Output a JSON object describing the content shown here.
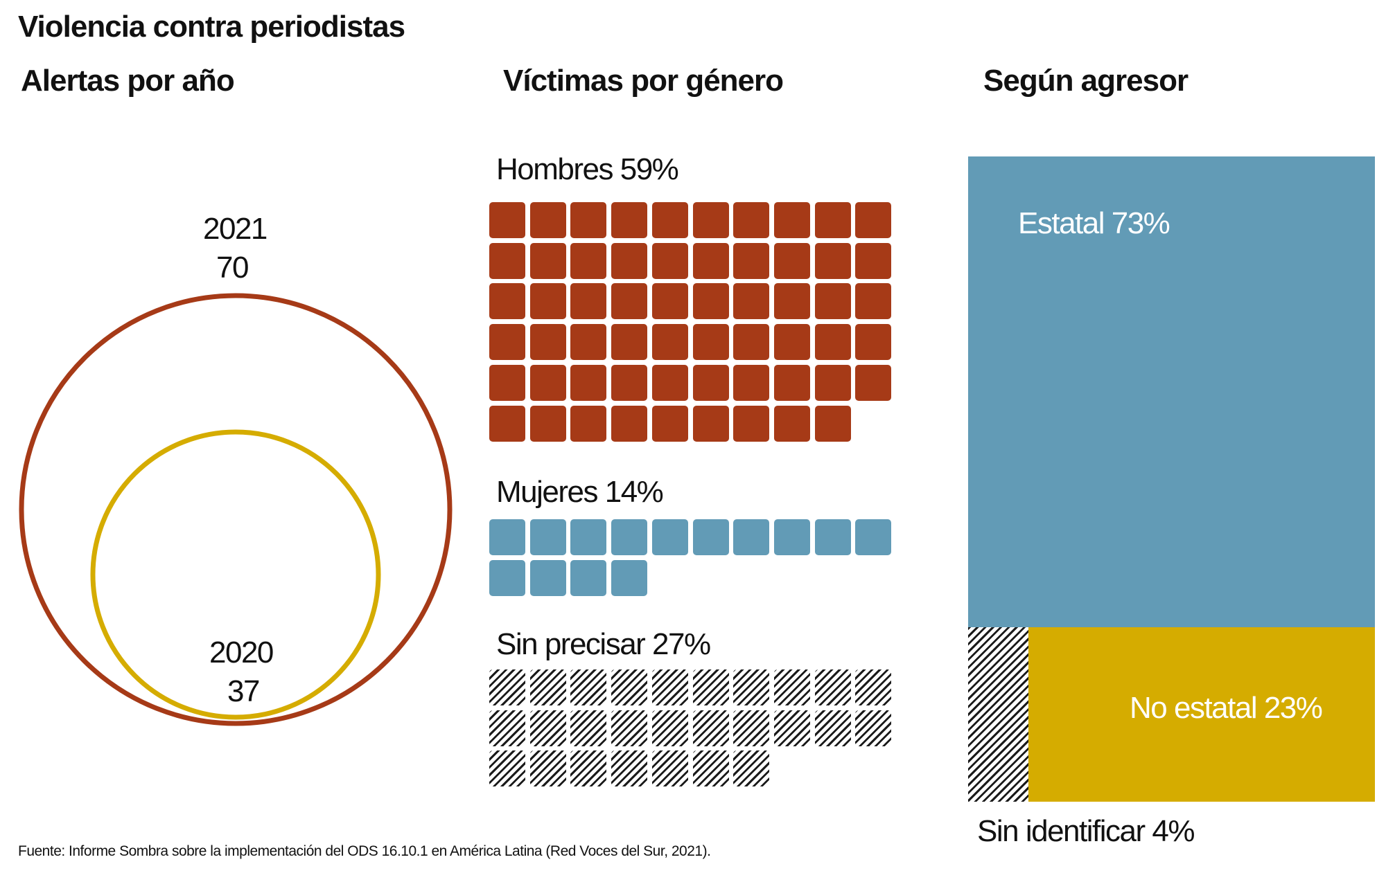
{
  "title": "Violencia contra periodistas",
  "source": "Fuente: Informe Sombra sobre la implementación del ODS 16.10.1 en América Latina (Red Voces del Sur, 2021).",
  "colors": {
    "rust": "#A63A17",
    "blue": "#629BB6",
    "gold": "#D5AC00",
    "ink": "#1a1a1a"
  },
  "chart_data": [
    {
      "type": "bubble",
      "title": "Alertas por año",
      "series": [
        {
          "year": "2021",
          "value": "70",
          "color": "#A63A17"
        },
        {
          "year": "2020",
          "value": "37",
          "color": "#D5AC00"
        }
      ]
    },
    {
      "type": "waffle",
      "title": "Víctimas por género",
      "columns": 10,
      "categories": [
        {
          "label": "Hombres 59%",
          "count": 59,
          "fill": "#A63A17"
        },
        {
          "label": "Mujeres 14%",
          "count": 14,
          "fill": "#629BB6"
        },
        {
          "label": "Sin precisar 27%",
          "count": 27,
          "fill": "hatch"
        }
      ]
    },
    {
      "type": "treemap",
      "title": "Según agresor",
      "categories": [
        {
          "label": "Estatal 73%",
          "value": 73,
          "fill": "#629BB6"
        },
        {
          "label": "No estatal 23%",
          "value": 23,
          "fill": "#D5AC00"
        },
        {
          "label": "Sin identificar 4%",
          "value": 4,
          "fill": "hatch"
        }
      ]
    }
  ]
}
